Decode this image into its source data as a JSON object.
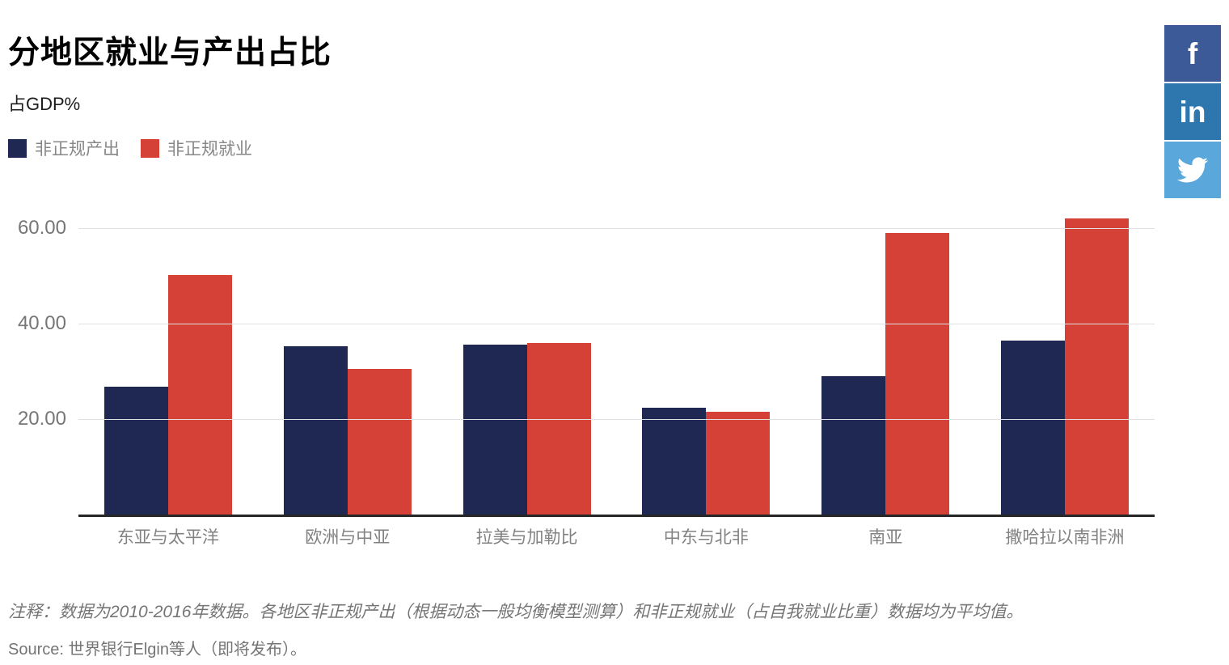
{
  "header": {
    "title": "分地区就业与产出占比",
    "subtitle": "占GDP%"
  },
  "legend": {
    "items": [
      {
        "label": "非正规产出",
        "color": "#1F2853"
      },
      {
        "label": "非正规就业",
        "color": "#D54136"
      }
    ]
  },
  "social": {
    "buttons": [
      {
        "name": "facebook",
        "glyph": "f",
        "color": "#3B5A97"
      },
      {
        "name": "linkedin",
        "glyph": "in",
        "color": "#2D76AE"
      },
      {
        "name": "twitter",
        "glyph": "twitter-bird",
        "color": "#5AA7DB"
      }
    ]
  },
  "chart_data": {
    "type": "bar",
    "title": "分地区就业与产出占比",
    "ylabel": "占GDP%",
    "xlabel": "",
    "categories": [
      "东亚与太平洋",
      "欧洲与中亚",
      "拉美与加勒比",
      "中东与北非",
      "南亚",
      "撒哈拉以南非洲"
    ],
    "series": [
      {
        "key": "informal-output",
        "name": "非正规产出",
        "color": "#1F2853",
        "values": [
          26.8,
          35.2,
          35.6,
          22.4,
          29.0,
          36.5
        ]
      },
      {
        "key": "informal-employment",
        "name": "非正规就业",
        "color": "#D54136",
        "values": [
          50.2,
          30.5,
          35.9,
          21.6,
          58.9,
          62.0
        ]
      }
    ],
    "yticks": [
      20,
      40,
      60
    ],
    "ytick_labels": [
      "20.00",
      "40.00",
      "60.00"
    ],
    "ylim": [
      0,
      64.4
    ],
    "grid": true,
    "legend_position": "top-left"
  },
  "notes": {
    "note": "注释：数据为2010-2016年数据。各地区非正规产出（根据动态一般均衡模型测算）和非正规就业（占自我就业比重）数据均为平均值。",
    "source": "Source: 世界银行Elgin等人（即将发布）。"
  }
}
